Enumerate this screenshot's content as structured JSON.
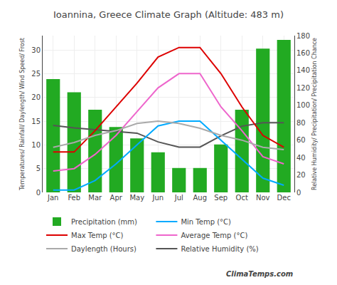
{
  "chart_data": {
    "type": "bar",
    "title": "Ioannina, Greece Climate Graph (Altitude: 483 m)",
    "categories": [
      "Jan",
      "Feb",
      "Mar",
      "Apr",
      "May",
      "Jun",
      "Jul",
      "Aug",
      "Sep",
      "Oct",
      "Nov",
      "Dec"
    ],
    "series": [
      {
        "name": "Precipitation (mm)",
        "type": "bar",
        "axis": "y2",
        "color": "#22aa22",
        "values": [
          130,
          115,
          95,
          75,
          62,
          46,
          28,
          28,
          55,
          95,
          165,
          175
        ]
      },
      {
        "name": "Min Temp (°C)",
        "type": "line",
        "color": "#00aaff",
        "values": [
          0.5,
          0.5,
          2.5,
          6,
          10,
          14,
          15,
          15,
          11,
          7,
          3,
          1.5
        ]
      },
      {
        "name": "Max Temp (°C)",
        "type": "line",
        "color": "#dd0000",
        "values": [
          8.5,
          8.5,
          13,
          18,
          23,
          28.5,
          30.5,
          30.5,
          25,
          18,
          12,
          9.5
        ]
      },
      {
        "name": "Average Temp (°C)",
        "type": "line",
        "color": "#ee66cc",
        "values": [
          4.5,
          5,
          8,
          12,
          17,
          22,
          25,
          25,
          18,
          13,
          7.5,
          6
        ]
      },
      {
        "name": "Daylength (Hours)",
        "type": "line",
        "color": "#aaaaaa",
        "values": [
          9.5,
          10.5,
          12,
          13,
          14.5,
          15,
          14.5,
          13.5,
          12,
          11,
          9.5,
          9
        ]
      },
      {
        "name": "Relative Humidity (%)",
        "type": "line",
        "axis": "y2",
        "color": "#555555",
        "values": [
          77,
          74,
          72,
          70,
          68,
          58,
          52,
          52,
          65,
          76,
          80,
          80
        ]
      }
    ],
    "ylabel": "Temperatures/ Rainfall/ Daylength/ Wind Speed/ Frost",
    "y2label": "Relative Humidity/ Precipitation/ Precipitation Chance",
    "ylim": [
      0,
      33
    ],
    "yticks": [
      0,
      5,
      10,
      15,
      20,
      25,
      30
    ],
    "y2lim": [
      0,
      180
    ],
    "y2ticks": [
      0,
      20,
      40,
      60,
      80,
      100,
      120,
      140,
      160,
      180
    ],
    "grid": true,
    "legend": "bottom",
    "annotations": [
      "Clima",
      "Temps.com"
    ]
  }
}
